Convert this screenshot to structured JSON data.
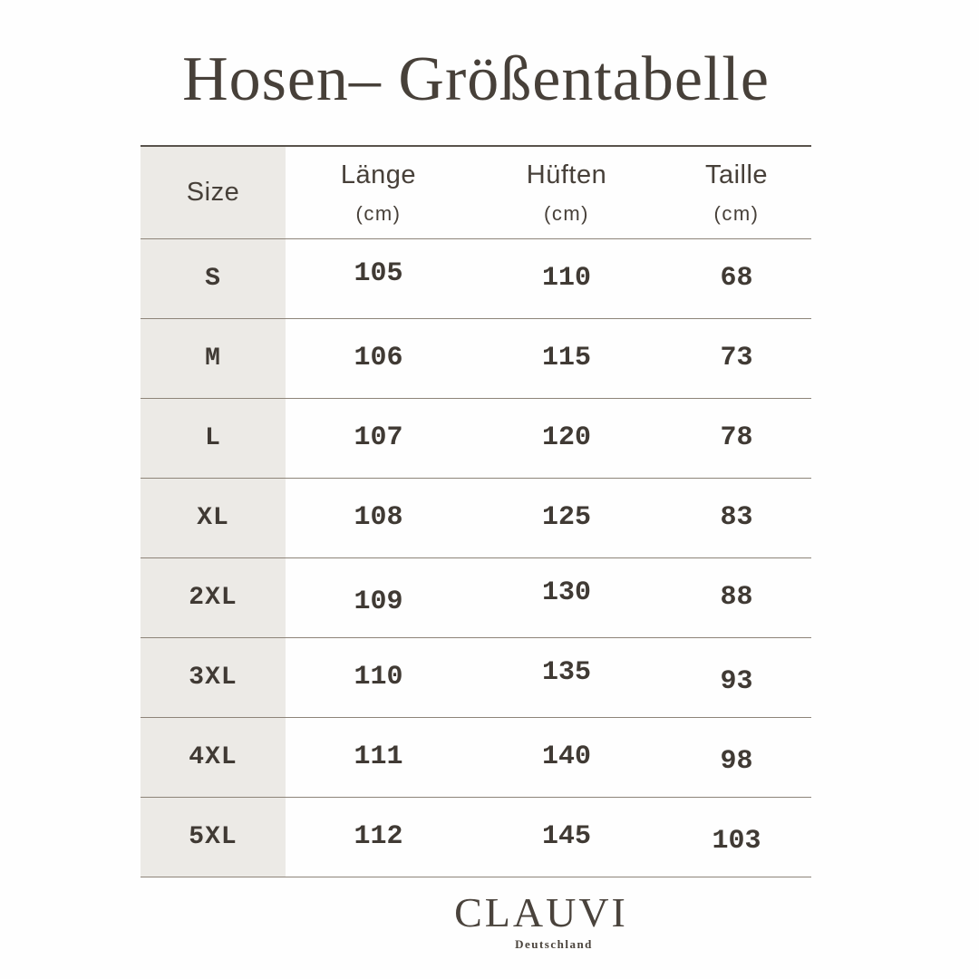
{
  "title": "Hosen– Größentabelle",
  "table": {
    "columns": [
      {
        "label": "Size",
        "unit": ""
      },
      {
        "label": "Länge",
        "unit": "(cm)"
      },
      {
        "label": "Hüften",
        "unit": "(cm)"
      },
      {
        "label": "Taille",
        "unit": "(cm)"
      }
    ],
    "rows": [
      {
        "size": "S",
        "laenge": "105",
        "hueften": "110",
        "taille": "68"
      },
      {
        "size": "M",
        "laenge": "106",
        "hueften": "115",
        "taille": "73"
      },
      {
        "size": "L",
        "laenge": "107",
        "hueften": "120",
        "taille": "78"
      },
      {
        "size": "XL",
        "laenge": "108",
        "hueften": "125",
        "taille": "83"
      },
      {
        "size": "2XL",
        "laenge": "109",
        "hueften": "130",
        "taille": "88"
      },
      {
        "size": "3XL",
        "laenge": "110",
        "hueften": "135",
        "taille": "93"
      },
      {
        "size": "4XL",
        "laenge": "111",
        "hueften": "140",
        "taille": "98"
      },
      {
        "size": "5XL",
        "laenge": "112",
        "hueften": "145",
        "taille": "103"
      }
    ]
  },
  "footer": {
    "brand": "CLAUVI",
    "subtext": "Deutschland"
  },
  "colors": {
    "text": "#474039",
    "row_line": "#8d8479",
    "top_line": "#59534c",
    "size_column_bg": "#eceae6",
    "background": "#fefefe"
  },
  "chart_data": {
    "type": "table",
    "title": "Hosen– Größentabelle",
    "columns": [
      "Size",
      "Länge (cm)",
      "Hüften (cm)",
      "Taille (cm)"
    ],
    "rows": [
      [
        "S",
        105,
        110,
        68
      ],
      [
        "M",
        106,
        115,
        73
      ],
      [
        "L",
        107,
        120,
        78
      ],
      [
        "XL",
        108,
        125,
        83
      ],
      [
        "2XL",
        109,
        130,
        88
      ],
      [
        "3XL",
        110,
        135,
        93
      ],
      [
        "4XL",
        111,
        140,
        98
      ],
      [
        "5XL",
        112,
        145,
        103
      ]
    ]
  }
}
